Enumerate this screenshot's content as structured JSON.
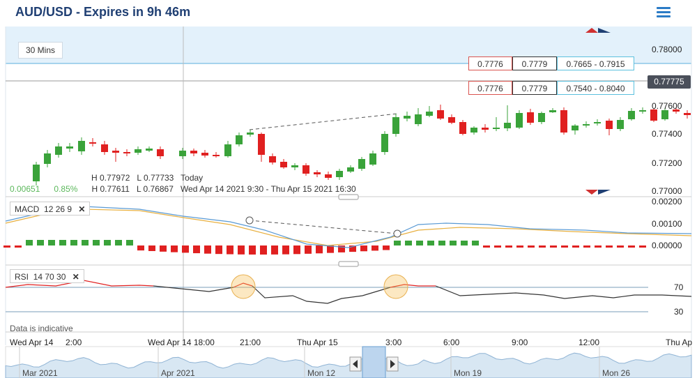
{
  "header": {
    "title": "AUD/USD - Expires in 9h 46m"
  },
  "timeframe": {
    "label": "30 Mins"
  },
  "quote_rows": [
    {
      "bid": "0.7776",
      "ask": "0.7779",
      "range": "0.7665 - 0.7915"
    },
    {
      "bid": "0.7776",
      "ask": "0.7779",
      "range": "0.7540 - 0.8040"
    }
  ],
  "current_price": "0.77775",
  "price_axis": [
    "0.78000",
    "0.77600",
    "0.77400",
    "0.77200",
    "0.77000"
  ],
  "ohlc": {
    "row1": {
      "h": "H 0.77972",
      "l": "L 0.77733",
      "period": "Today"
    },
    "row2": {
      "h": "H 0.77611",
      "l": "L 0.76867",
      "period": "Wed Apr 14 2021 9:30 - Thu Apr 15 2021 16:30"
    },
    "change": "0.00651",
    "change_pct": "0.85%"
  },
  "macd": {
    "label": "MACD",
    "params": "12 26 9",
    "axis": [
      "0.00200",
      "0.00100",
      "0.00000"
    ]
  },
  "rsi": {
    "label": "RSI",
    "params": "14 70 30",
    "axis": [
      "70",
      "30"
    ]
  },
  "disclaimer": "Data is indicative",
  "time_axis": [
    "Wed Apr 14",
    "2:00",
    "Wed Apr 14 18:00",
    "21:00",
    "Thu Apr 15",
    "3:00",
    "6:00",
    "9:00",
    "12:00",
    "Thu Ap"
  ],
  "navigator": [
    "Mar 2021",
    "Apr 2021",
    "Mon 12",
    "Mon 19",
    "Mon 26"
  ],
  "colors": {
    "up": "#3aa33a",
    "down": "#e02020",
    "accent": "#2b7bc6",
    "title": "#1f3f73"
  },
  "icons": {
    "menu": "hamburger-icon",
    "close": "close-icon",
    "scroll_left": "chevron-left-icon",
    "scroll_right": "chevron-right-icon"
  }
}
